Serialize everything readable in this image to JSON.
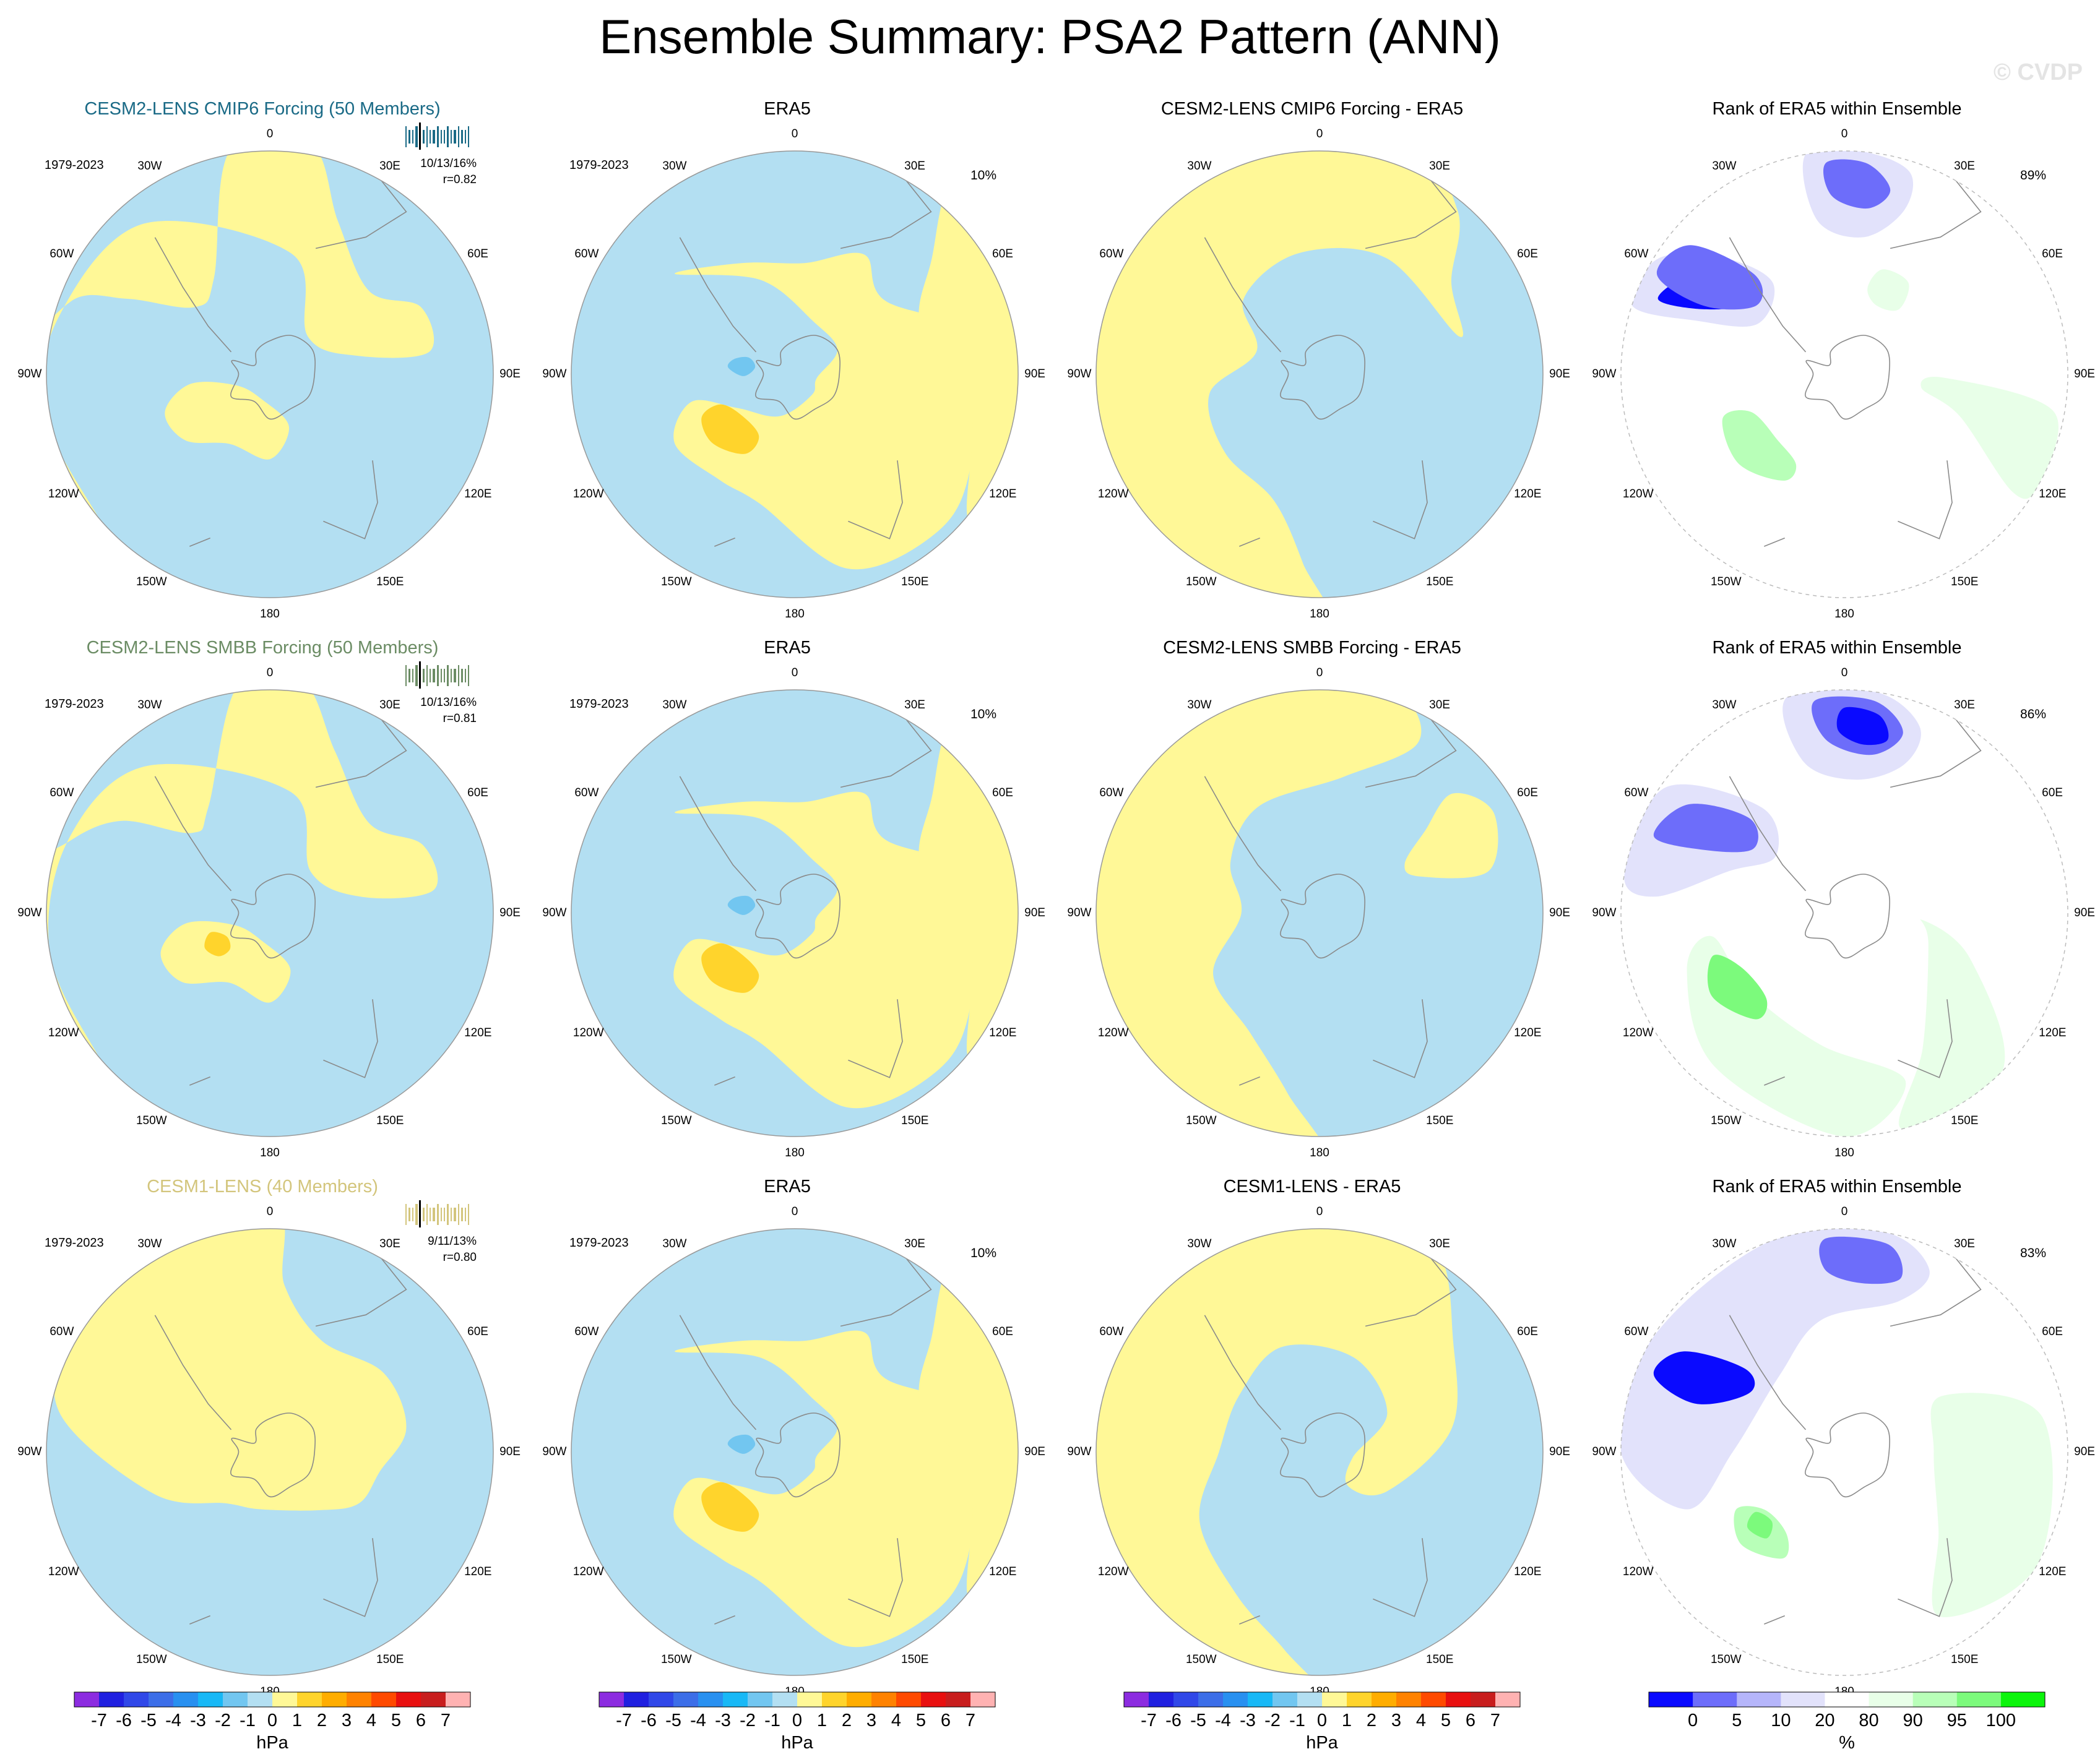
{
  "title": "Ensemble Summary: PSA2 Pattern (ANN)",
  "watermark": "© CVDP",
  "lon_labels": {
    "0": "0",
    "30E": "30E",
    "60E": "60E",
    "90E": "90E",
    "120E": "120E",
    "150E": "150E",
    "180": "180",
    "150W": "150W",
    "120W": "120W",
    "90W": "90W",
    "60W": "60W",
    "30W": "30W"
  },
  "rows": [
    {
      "model": {
        "title": "CESM2-LENS CMIP6 Forcing (50 Members)",
        "title_color": "#1a6a86",
        "period": "1979-2023",
        "pct": "10/13/16%",
        "r": "r=0.82"
      },
      "obs": {
        "title": "ERA5",
        "period": "1979-2023",
        "pct": "10%"
      },
      "diff": {
        "title": "CESM2-LENS CMIP6 Forcing - ERA5"
      },
      "rank": {
        "title": "Rank of ERA5 within Ensemble",
        "pct": "89%"
      }
    },
    {
      "model": {
        "title": "CESM2-LENS SMBB Forcing (50 Members)",
        "title_color": "#6b8c64",
        "period": "1979-2023",
        "pct": "10/13/16%",
        "r": "r=0.81"
      },
      "obs": {
        "title": "ERA5",
        "period": "1979-2023",
        "pct": "10%"
      },
      "diff": {
        "title": "CESM2-LENS SMBB Forcing - ERA5"
      },
      "rank": {
        "title": "Rank of ERA5 within Ensemble",
        "pct": "86%"
      }
    },
    {
      "model": {
        "title": "CESM1-LENS (40 Members)",
        "title_color": "#d3c57c",
        "period": "1979-2023",
        "pct": "9/11/13%",
        "r": "r=0.80"
      },
      "obs": {
        "title": "ERA5",
        "period": "1979-2023",
        "pct": "10%"
      },
      "diff": {
        "title": "CESM1-LENS - ERA5"
      },
      "rank": {
        "title": "Rank of ERA5 within Ensemble",
        "pct": "83%"
      }
    }
  ],
  "colorbar_hpa": {
    "unit": "hPa",
    "ticks": [
      "-7",
      "-6",
      "-5",
      "-4",
      "-3",
      "-2",
      "-1",
      "0",
      "1",
      "2",
      "3",
      "4",
      "5",
      "6",
      "7"
    ],
    "colors": [
      "#8c2ce0",
      "#2020e0",
      "#3048e8",
      "#3c6ee8",
      "#2890f0",
      "#18b8f6",
      "#72c6f0",
      "#b3dff2",
      "#fff897",
      "#ffd42c",
      "#ffad00",
      "#ff8200",
      "#ff4a00",
      "#e81010",
      "#c81e1e",
      "#ffb2b2"
    ]
  },
  "colorbar_rank": {
    "unit": "%",
    "ticks": [
      "0",
      "5",
      "10",
      "20",
      "80",
      "90",
      "95",
      "100"
    ],
    "colors": [
      "#0a0aff",
      "#6d6dfa",
      "#b5b5fa",
      "#e2e2fb",
      "#ffffff",
      "#e8ffe8",
      "#b8ffb8",
      "#7cfa7c",
      "#0cf40c"
    ]
  },
  "palette": {
    "pos": "#fff897",
    "neg": "#b3dff2",
    "pos2": "#ffd42c",
    "neg2": "#72c6f0"
  }
}
